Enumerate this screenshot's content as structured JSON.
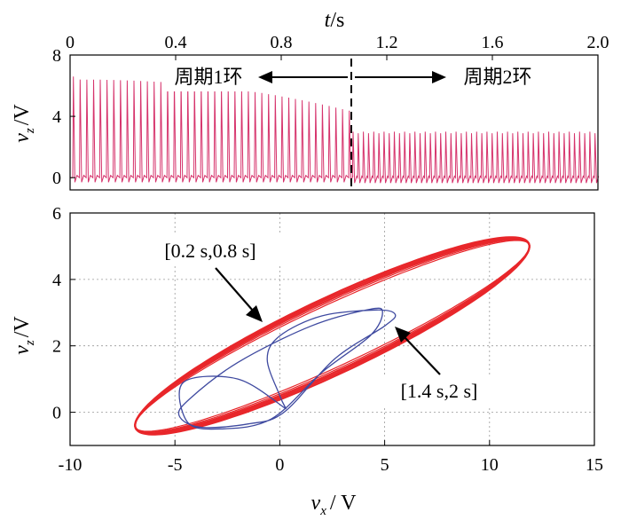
{
  "chart_data": [
    {
      "type": "line",
      "id": "time-series",
      "xlabel_var": "t",
      "xlabel_unit": "/s",
      "ylabel_var": "v",
      "ylabel_sub": "z",
      "ylabel_unit": "/V",
      "xlim": [
        0,
        2.0
      ],
      "ylim": [
        -0.8,
        8
      ],
      "x_ticks": [
        "0",
        "0.4",
        "0.8",
        "1.2",
        "1.6",
        "2.0"
      ],
      "x_tick_values": [
        0,
        0.4,
        0.8,
        1.2,
        1.6,
        2.0
      ],
      "y_ticks": [
        "0",
        "4",
        "8"
      ],
      "y_tick_values": [
        0,
        4,
        8
      ],
      "grid": false,
      "series": [
        {
          "color": "#d6336c",
          "description": "periodic spikes",
          "segments": [
            {
              "t_start": 0.01,
              "t_end": 1.07,
              "period": 0.0255,
              "peak_start": 6.4,
              "peak_end": 4.3,
              "baseline": 0.0,
              "trough": -0.3
            },
            {
              "t_start": 1.07,
              "t_end": 1.99,
              "period": 0.0195,
              "peak_alt": [
                3.0,
                2.9
              ],
              "baseline": 0.0,
              "trough": -0.35
            }
          ]
        }
      ],
      "divider_t": 1.08,
      "annotations": [
        {
          "text": "周期1环",
          "arrow": "left"
        },
        {
          "text": "周期2环",
          "arrow": "right"
        }
      ]
    },
    {
      "type": "line",
      "id": "phase-portrait",
      "xlabel_var": "v",
      "xlabel_sub": "x",
      "xlabel_unit": "/ V",
      "ylabel_var": "v",
      "ylabel_sub": "z",
      "ylabel_unit": "/V",
      "xlim": [
        -10,
        15
      ],
      "ylim": [
        -1.0,
        6
      ],
      "x_ticks": [
        "-10",
        "-5",
        "0",
        "5",
        "10",
        "15"
      ],
      "x_tick_values": [
        -10,
        -5,
        0,
        5,
        10,
        15
      ],
      "y_ticks": [
        "0",
        "2",
        "4",
        "6"
      ],
      "y_tick_values": [
        0,
        2,
        4,
        6
      ],
      "grid": true,
      "series": [
        {
          "color": "#e8262a",
          "label": "[0.2 s,0.8 s]",
          "shape": "tilted-ellipse",
          "center": [
            2.5,
            2.3
          ],
          "major_end_right": [
            11.8,
            5.05
          ],
          "major_end_left": [
            -7.0,
            -0.3
          ]
        },
        {
          "color": "#3f4aa0",
          "label": "[1.4 s,2 s]",
          "shape": "double-loop",
          "left": -4.8,
          "right": 5.5,
          "top": 3.1,
          "bottom": -0.45
        }
      ],
      "annotations": [
        {
          "text": "[0.2 s,0.8 s]",
          "points_to": [
            -0.6,
            2.8
          ]
        },
        {
          "text": "[1.4 s,2 s]",
          "points_to": [
            5.5,
            2.45
          ]
        }
      ]
    }
  ]
}
